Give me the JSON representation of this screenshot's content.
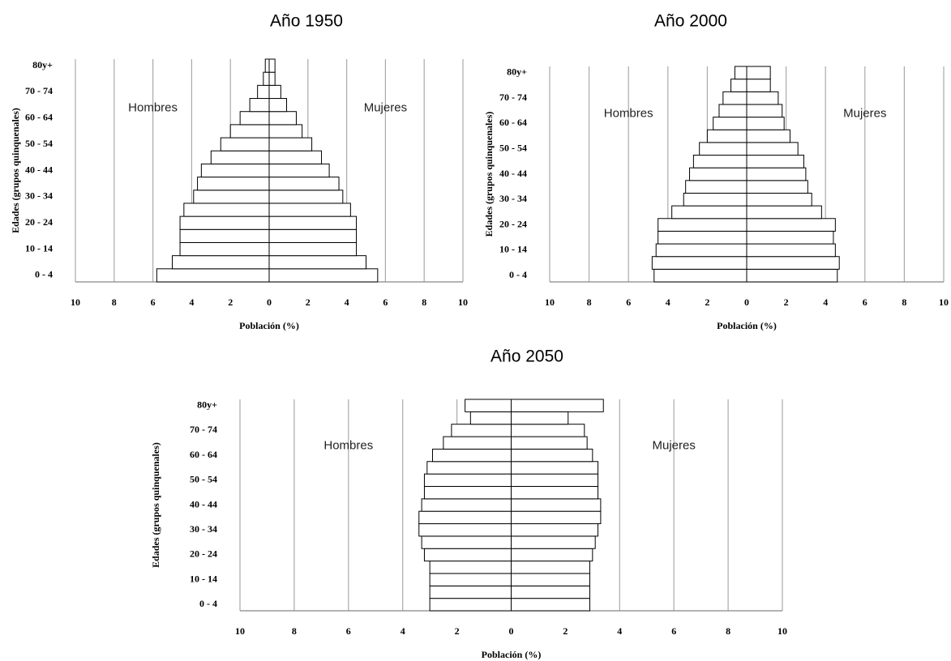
{
  "chart_data": [
    {
      "type": "pyramid",
      "title": "Año 1950",
      "xlabel": "Población (%)",
      "ylabel": "Edades (grupos quinquenales)",
      "categories": [
        "0 - 4",
        null,
        "10 - 14",
        null,
        "20 - 24",
        null,
        "30 - 34",
        null,
        "40 - 44",
        null,
        "50 - 54",
        null,
        "60 - 64",
        null,
        "70 - 74",
        null,
        "80y+"
      ],
      "series": [
        {
          "name": "Hombres",
          "color": "#ffffff",
          "values": [
            -5.8,
            -5.0,
            -4.6,
            -4.6,
            -4.6,
            -4.4,
            -3.9,
            -3.7,
            -3.5,
            -3.0,
            -2.5,
            -2.0,
            -1.5,
            -1.0,
            -0.6,
            -0.3,
            -0.2
          ]
        },
        {
          "name": "Mujeres",
          "color": "#ffffff",
          "values": [
            5.6,
            5.0,
            4.5,
            4.5,
            4.5,
            4.2,
            3.8,
            3.6,
            3.1,
            2.7,
            2.2,
            1.7,
            1.4,
            0.9,
            0.6,
            0.3,
            0.3
          ]
        }
      ],
      "xlim": [
        -10,
        10
      ],
      "xticks": [
        {
          "value": -10,
          "label": "10"
        },
        {
          "value": -8,
          "label": "8"
        },
        {
          "value": -6,
          "label": "6"
        },
        {
          "value": -4,
          "label": "4"
        },
        {
          "value": -2,
          "label": "2"
        },
        0,
        2,
        4,
        6,
        8,
        10
      ],
      "grid": true
    },
    {
      "type": "pyramid",
      "title": "Año 2000",
      "xlabel": "Población (%)",
      "ylabel": "Edades (grupos quinquenales)",
      "categories": [
        "0 - 4",
        null,
        "10 - 14",
        null,
        "20 - 24",
        null,
        "30 - 34",
        null,
        "40 - 44",
        null,
        "50 - 54",
        null,
        "60 - 64",
        null,
        "70 - 74",
        null,
        "80y+"
      ],
      "series": [
        {
          "name": "Hombres",
          "color": "#ffffff",
          "values": [
            -4.7,
            -4.8,
            -4.6,
            -4.5,
            -4.5,
            -3.8,
            -3.2,
            -3.1,
            -2.9,
            -2.7,
            -2.4,
            -2.0,
            -1.7,
            -1.4,
            -1.2,
            -0.8,
            -0.6
          ]
        },
        {
          "name": "Mujeres",
          "color": "#ffffff",
          "values": [
            4.6,
            4.7,
            4.5,
            4.4,
            4.5,
            3.8,
            3.3,
            3.1,
            3.0,
            2.9,
            2.6,
            2.2,
            1.9,
            1.8,
            1.6,
            1.2,
            1.2
          ]
        }
      ],
      "xlim": [
        -10,
        10
      ],
      "xticks": [
        {
          "value": -10,
          "label": "10"
        },
        {
          "value": -8,
          "label": "8"
        },
        {
          "value": -6,
          "label": "6"
        },
        {
          "value": -4,
          "label": "4"
        },
        {
          "value": -2,
          "label": "2"
        },
        0,
        2,
        4,
        6,
        8,
        10
      ],
      "grid": true
    },
    {
      "type": "pyramid",
      "title": "Año 2050",
      "xlabel": "Población (%)",
      "ylabel": "Edades (grupos quinquenales)",
      "categories": [
        "0 - 4",
        null,
        "10 - 14",
        null,
        "20 - 24",
        null,
        "30 - 34",
        null,
        "40 - 44",
        null,
        "50 - 54",
        null,
        "60 - 64",
        null,
        "70 - 74",
        null,
        "80y+"
      ],
      "series": [
        {
          "name": "Hombres",
          "color": "#ffffff",
          "values": [
            -3.0,
            -3.0,
            -3.0,
            -3.0,
            -3.2,
            -3.3,
            -3.4,
            -3.4,
            -3.3,
            -3.2,
            -3.2,
            -3.1,
            -2.9,
            -2.5,
            -2.2,
            -1.5,
            -1.7
          ]
        },
        {
          "name": "Mujeres",
          "color": "#ffffff",
          "values": [
            2.9,
            2.9,
            2.9,
            2.9,
            3.0,
            3.1,
            3.2,
            3.3,
            3.3,
            3.2,
            3.2,
            3.2,
            3.0,
            2.8,
            2.7,
            2.1,
            3.4
          ]
        }
      ],
      "xlim": [
        -10,
        10
      ],
      "xticks": [
        {
          "value": -10,
          "label": "10"
        },
        {
          "value": -8,
          "label": "8"
        },
        {
          "value": -6,
          "label": "6"
        },
        {
          "value": -4,
          "label": "4"
        },
        {
          "value": -2,
          "label": "2"
        },
        0,
        2,
        4,
        6,
        8,
        10
      ],
      "grid": true
    }
  ]
}
